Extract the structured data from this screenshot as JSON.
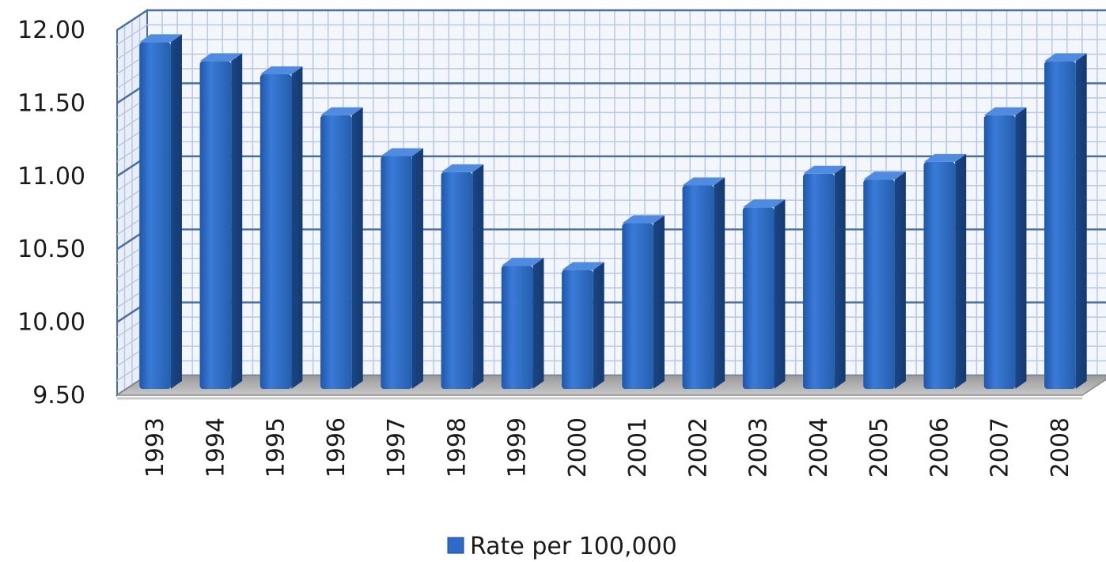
{
  "chart_data": {
    "type": "bar",
    "title": "",
    "xlabel": "",
    "ylabel": "",
    "categories": [
      "1993",
      "1994",
      "1995",
      "1996",
      "1997",
      "1998",
      "1999",
      "2000",
      "2001",
      "2002",
      "2003",
      "2004",
      "2005",
      "2006",
      "2007",
      "2008"
    ],
    "series": [
      {
        "name": "Rate per 100,000",
        "values": [
          11.96,
          11.83,
          11.74,
          11.46,
          11.18,
          11.07,
          10.43,
          10.4,
          10.72,
          10.98,
          10.83,
          11.06,
          11.02,
          11.14,
          11.46,
          11.83
        ]
      }
    ],
    "ylim": [
      9.5,
      12.0
    ],
    "yticks": [
      "9.50",
      "10.00",
      "10.50",
      "11.00",
      "11.50",
      "12.00"
    ],
    "grid": true,
    "legend_position": "bottom",
    "style": "3d-column",
    "colors": {
      "bar_front": "#2e6bc6",
      "bar_side": "#1b4a95",
      "bar_top": "#4f8be0",
      "grid_major": "#4a6fa0",
      "grid_minor": "#b9c9e2",
      "wall": "#f3f6fb",
      "floor": "#a7a7a7"
    }
  }
}
